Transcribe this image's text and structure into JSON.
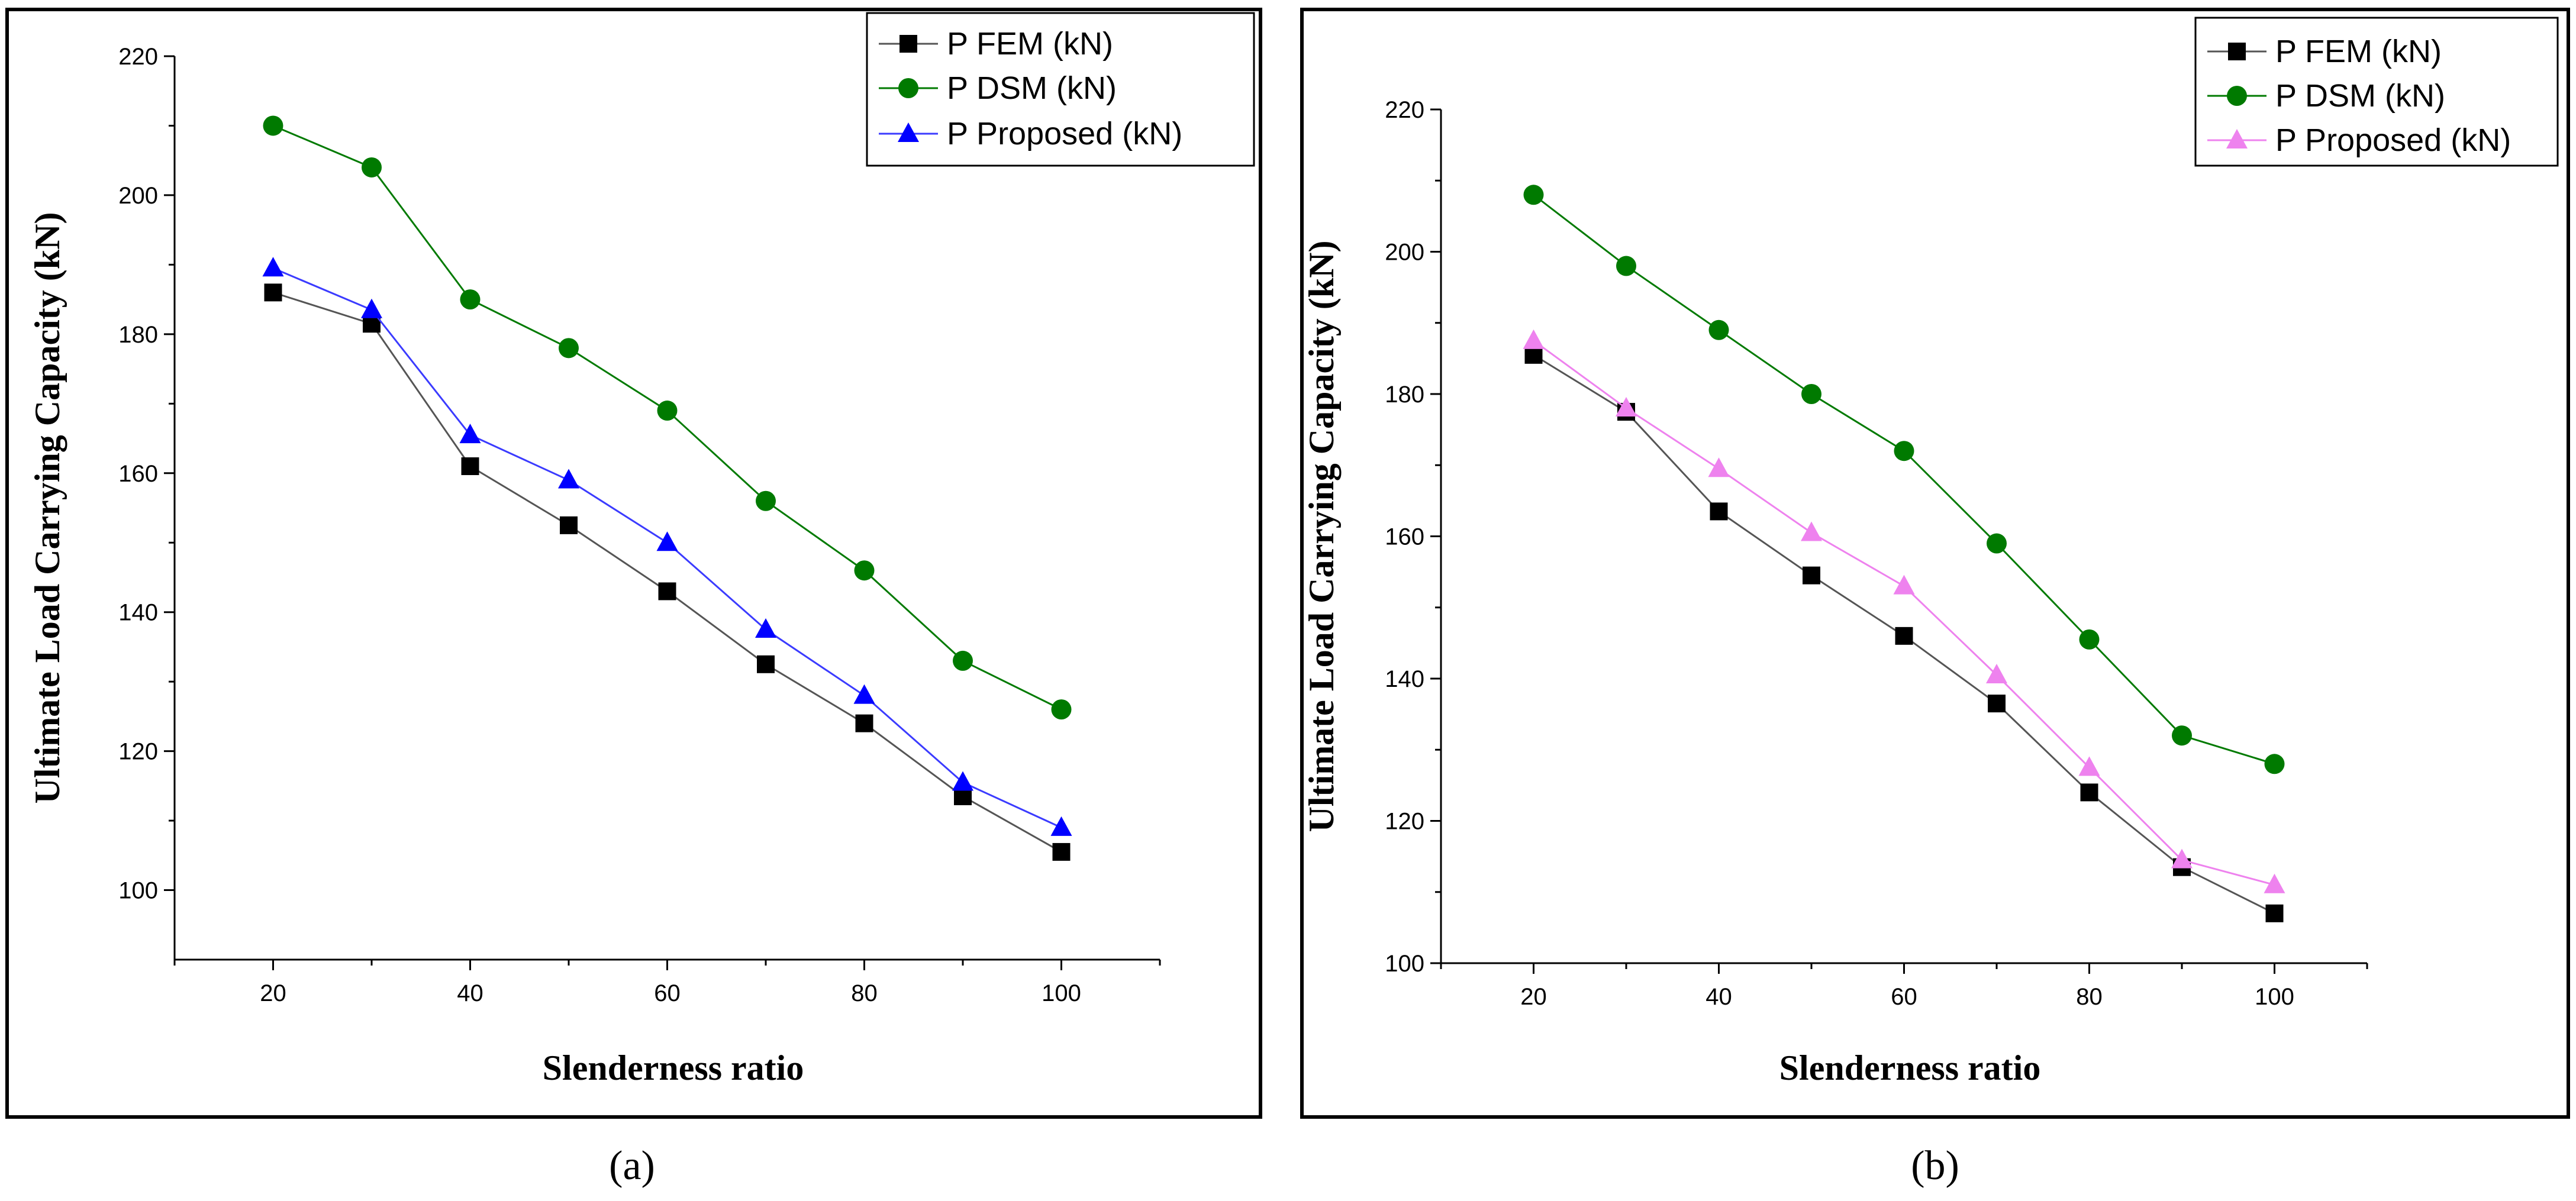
{
  "chart_data": [
    {
      "type": "line",
      "panel": "a",
      "xlabel": "Slenderness ratio",
      "ylabel": "Ultimate Load Carrying Capacity (kN)",
      "x": [
        20,
        30,
        40,
        50,
        60,
        70,
        80,
        90,
        100
      ],
      "xlim": [
        10,
        110
      ],
      "ylim": [
        90,
        220
      ],
      "xticks": [
        20,
        40,
        60,
        80,
        100
      ],
      "yticks": [
        100,
        120,
        140,
        160,
        180,
        200,
        220
      ],
      "grid": false,
      "legend_position": "top-right",
      "series": [
        {
          "name": "P  FEM (kN)",
          "marker": "square",
          "color": "#000000",
          "line_color": "#555555",
          "values": [
            186,
            181.5,
            161,
            152.5,
            143,
            132.5,
            124,
            113.5,
            105.5
          ]
        },
        {
          "name": "P  DSM (kN)",
          "marker": "circle",
          "color": "#007a00",
          "line_color": "#007a00",
          "values": [
            210,
            204,
            185,
            178,
            169,
            156,
            146,
            133,
            126
          ]
        },
        {
          "name": "P Proposed (kN)",
          "marker": "triangle",
          "color": "#0000ff",
          "line_color": "#3b3bff",
          "values": [
            189.5,
            183.5,
            165.5,
            159,
            150,
            137.5,
            128,
            115.5,
            109
          ]
        }
      ]
    },
    {
      "type": "line",
      "panel": "b",
      "xlabel": "Slenderness ratio",
      "ylabel": "Ultimate Load Carrying Capacity (kN)",
      "x": [
        20,
        30,
        40,
        50,
        60,
        70,
        80,
        90,
        100
      ],
      "xlim": [
        10,
        110
      ],
      "ylim": [
        100,
        220
      ],
      "xticks": [
        20,
        40,
        60,
        80,
        100
      ],
      "yticks": [
        100,
        120,
        140,
        160,
        180,
        200,
        220
      ],
      "grid": false,
      "legend_position": "top-right",
      "series": [
        {
          "name": "P FEM (kN)",
          "marker": "square",
          "color": "#000000",
          "line_color": "#555555",
          "values": [
            185.5,
            177.5,
            163.5,
            154.5,
            146,
            136.5,
            124,
            113.5,
            107
          ]
        },
        {
          "name": "P DSM (kN)",
          "marker": "circle",
          "color": "#007a00",
          "line_color": "#007a00",
          "values": [
            208,
            198,
            189,
            180,
            172,
            159,
            145.5,
            132,
            128
          ]
        },
        {
          "name": "P Proposed (kN)",
          "marker": "triangle",
          "color": "#ee82ee",
          "line_color": "#ee82ee",
          "values": [
            187.5,
            178,
            169.5,
            160.5,
            153,
            140.5,
            127.5,
            114.5,
            111
          ]
        }
      ]
    }
  ],
  "labels": {
    "a": "(a)",
    "b": "(b)"
  }
}
